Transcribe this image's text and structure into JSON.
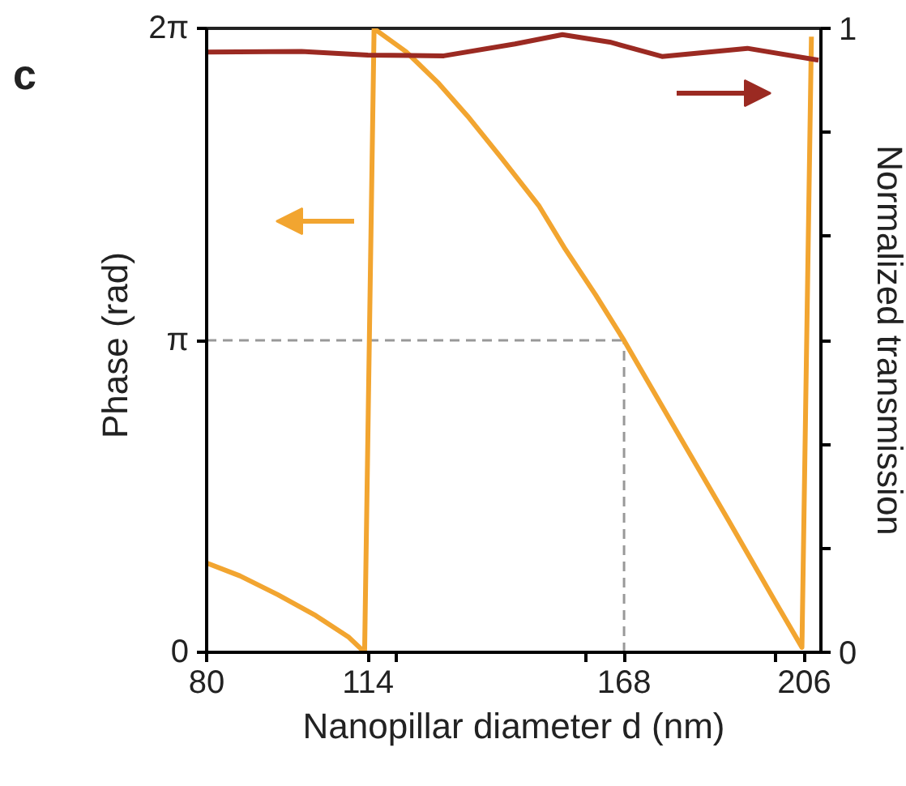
{
  "chart_data": {
    "type": "line",
    "xlabel": "Nanopillar diameter d (nm)",
    "ylabel": "Phase  (rad)",
    "y2label": "Normalized transmission",
    "annotations": [
      "c"
    ],
    "xlim": [
      80,
      209.5
    ],
    "xticks": [
      80,
      114,
      {
        "value": 120,
        "label": null
      },
      {
        "value": 160,
        "label": null
      },
      168,
      {
        "value": 200,
        "label": null
      },
      206
    ],
    "ylim": [
      0,
      6.2832
    ],
    "yticks": [
      {
        "value": 0,
        "label": "0"
      },
      {
        "value": 3.1416,
        "label": "π"
      },
      {
        "value": 6.2832,
        "label": "2π"
      }
    ],
    "y2lim": [
      0,
      1
    ],
    "y2ticks": [
      0,
      {
        "value": 0.1667,
        "label": null
      },
      {
        "value": 0.3333,
        "label": null
      },
      {
        "value": 0.5,
        "label": null
      },
      {
        "value": 0.6667,
        "label": null
      },
      {
        "value": 0.8333,
        "label": null
      },
      1
    ],
    "series": [
      {
        "color": "#f2a530",
        "x": [
          80,
          87,
          95,
          103,
          110,
          113.3,
          115.3,
          122,
          128.7,
          135,
          142.1,
          150,
          155.6,
          162,
          168,
          180,
          190,
          200,
          205.5,
          207.5
        ],
        "values": [
          0.9,
          0.77,
          0.58,
          0.37,
          0.15,
          0.0,
          6.28,
          6.05,
          5.74,
          5.4,
          4.98,
          4.5,
          4.06,
          3.6,
          3.14,
          2.15,
          1.33,
          0.5,
          0.05,
          6.2
        ]
      },
      {
        "color": "#9b2a22",
        "axis": "y2",
        "x": [
          80,
          100,
          114,
          130,
          145,
          155,
          165,
          176,
          194,
          209
        ],
        "values": [
          0.962,
          0.963,
          0.957,
          0.956,
          0.975,
          0.99,
          0.978,
          0.955,
          0.968,
          0.949
        ]
      }
    ],
    "ref_lines": [
      {
        "axis": "y",
        "value": 3.1416,
        "color": "#999999",
        "line_style": "dashed"
      },
      {
        "axis": "x",
        "value": 168,
        "color": "#999999",
        "line_style": "dashed"
      }
    ],
    "grid": false,
    "marker": "none",
    "line_style": "solid"
  }
}
